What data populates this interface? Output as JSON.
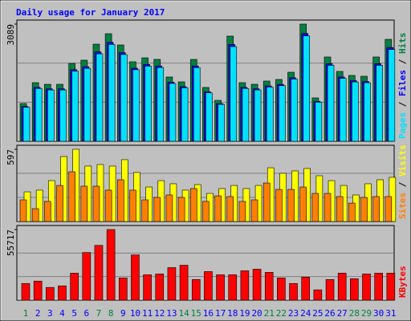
{
  "title": "Daily usage for January 2017",
  "chart_data": [
    {
      "type": "bar",
      "ylim": [
        0,
        3089
      ],
      "yticks": [
        3089
      ],
      "legend_separator": " / ",
      "series": [
        {
          "name": "Hits",
          "color": "#008040",
          "values": [
            995,
            1545,
            1502,
            1502,
            2052,
            2137,
            2560,
            2835,
            2539,
            2095,
            2200,
            2158,
            1693,
            1566,
            2158,
            1418,
            1079,
            2772,
            1545,
            1502,
            1587,
            1629,
            1820,
            3089,
            1143,
            2222,
            1841,
            1735,
            1714,
            2222,
            2687
          ]
        },
        {
          "name": "Files",
          "color": "#0000ff",
          "values": [
            915,
            1421,
            1382,
            1382,
            1888,
            1966,
            2355,
            2608,
            2336,
            1927,
            2024,
            1985,
            1558,
            1441,
            1985,
            1305,
            993,
            2550,
            1421,
            1382,
            1460,
            1499,
            1674,
            2842,
            1052,
            2044,
            1694,
            1596,
            1577,
            2044,
            2472
          ]
        },
        {
          "name": "Pages",
          "color": "#00e0ff",
          "values": [
            896,
            1391,
            1352,
            1352,
            1847,
            1923,
            2304,
            2552,
            2285,
            1886,
            1980,
            1942,
            1524,
            1409,
            1942,
            1276,
            971,
            2495,
            1391,
            1352,
            1428,
            1466,
            1638,
            2780,
            1029,
            2000,
            1657,
            1562,
            1543,
            2000,
            2418
          ]
        }
      ]
    },
    {
      "type": "bar",
      "ylim": [
        0,
        597
      ],
      "yticks": [
        597
      ],
      "legend_separator": " / ",
      "series": [
        {
          "name": "Visits",
          "color": "#ffff00",
          "values": [
            245,
            259,
            338,
            537,
            597,
            458,
            471,
            458,
            511,
            405,
            285,
            338,
            312,
            259,
            305,
            232,
            272,
            298,
            272,
            298,
            444,
            398,
            418,
            438,
            378,
            338,
            298,
            219,
            312,
            345,
            365
          ]
        },
        {
          "name": "Sites",
          "color": "#ff8000",
          "values": [
            179,
            106,
            166,
            298,
            411,
            292,
            292,
            259,
            345,
            259,
            179,
            199,
            219,
            199,
            272,
            166,
            212,
            206,
            166,
            179,
            318,
            265,
            265,
            285,
            232,
            232,
            206,
            152,
            199,
            206,
            206
          ]
        }
      ]
    },
    {
      "type": "bar",
      "ylim": [
        0,
        55717
      ],
      "yticks": [
        55717
      ],
      "categories": [
        "1",
        "2",
        "3",
        "4",
        "5",
        "6",
        "7",
        "8",
        "9",
        "10",
        "11",
        "12",
        "13",
        "14",
        "15",
        "16",
        "17",
        "18",
        "19",
        "20",
        "21",
        "22",
        "23",
        "24",
        "25",
        "26",
        "27",
        "28",
        "29",
        "30",
        "31"
      ],
      "category_colors": [
        "#008040",
        "#0000ff",
        "#0000ff",
        "#0000ff",
        "#0000ff",
        "#0000ff",
        "#008040",
        "#008040",
        "#0000ff",
        "#0000ff",
        "#0000ff",
        "#0000ff",
        "#0000ff",
        "#008040",
        "#008040",
        "#0000ff",
        "#0000ff",
        "#0000ff",
        "#0000ff",
        "#0000ff",
        "#008040",
        "#008040",
        "#0000ff",
        "#0000ff",
        "#0000ff",
        "#0000ff",
        "#0000ff",
        "#008040",
        "#008040",
        "#0000ff",
        "#0000ff"
      ],
      "series": [
        {
          "name": "KBytes",
          "color": "#ff0000",
          "values": [
            13146,
            15024,
            10016,
            11268,
            21284,
            37560,
            43194,
            55717,
            17528,
            35682,
            20032,
            20658,
            25666,
            27544,
            16276,
            22536,
            20032,
            20032,
            23162,
            24414,
            21910,
            17528,
            13146,
            18154,
            8138,
            16276,
            21284,
            16902,
            20658,
            21284,
            21284
          ]
        }
      ]
    }
  ]
}
